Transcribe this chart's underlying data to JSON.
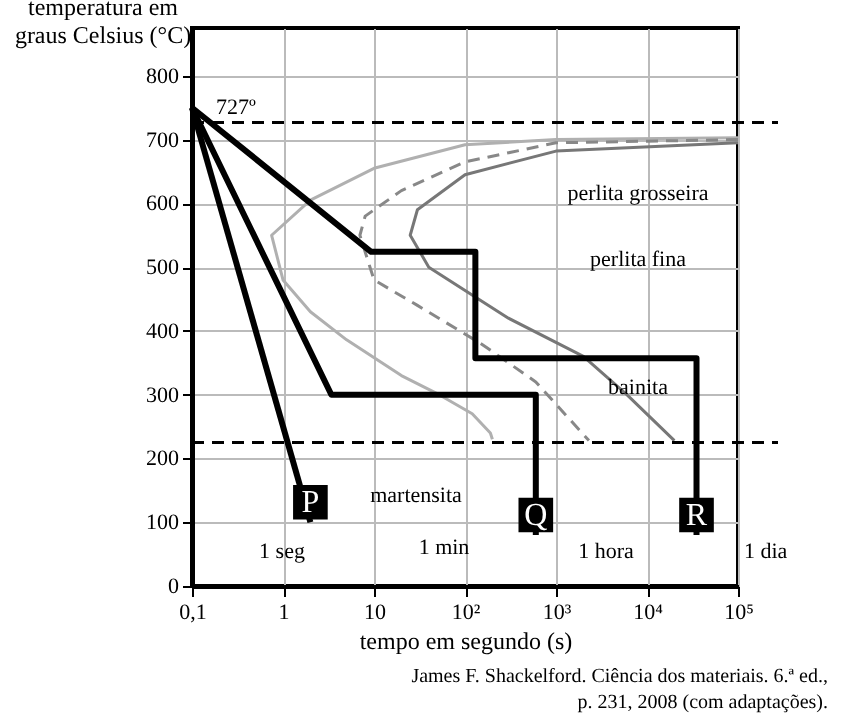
{
  "chart_data": {
    "type": "line",
    "ylabel": "temperatura em graus Celsius (°C)",
    "xlabel": "tempo em segundo (s)",
    "log": "x",
    "xlim": [
      0.1,
      100000
    ],
    "ylim": [
      0,
      875
    ],
    "xticks": [
      {
        "value": 0.1,
        "label": "0,1"
      },
      1,
      10,
      {
        "value": 100,
        "label": "10²"
      },
      {
        "value": 1000,
        "label": "10³"
      },
      {
        "value": 10000,
        "label": "10⁴"
      },
      {
        "value": 100000,
        "label": "10⁵"
      }
    ],
    "yticks": [
      0,
      100,
      200,
      300,
      400,
      500,
      600,
      700,
      800
    ],
    "grid": true,
    "marker": "none",
    "series": [
      {
        "color": "#b0b0b0",
        "line_style": "solid",
        "x": [
          100000,
          1000,
          100,
          10,
          2,
          0.75,
          1,
          2,
          5,
          20,
          52,
          120,
          190,
          200
        ],
        "values": [
          703,
          700,
          692,
          655,
          605,
          550,
          480,
          430,
          386,
          330,
          300,
          270,
          240,
          230
        ]
      },
      {
        "color": "#888888",
        "line_style": "dashed",
        "x": [
          100000,
          1000,
          100,
          20,
          8,
          7,
          10,
          30,
          150,
          600,
          2300
        ],
        "values": [
          700,
          695,
          665,
          620,
          580,
          550,
          480,
          440,
          380,
          320,
          228
        ]
      },
      {
        "color": "#777777",
        "line_style": "solid",
        "x": [
          100000,
          1000,
          100,
          30,
          25,
          40,
          300,
          2000,
          6000,
          20000
        ],
        "values": [
          695,
          682,
          645,
          590,
          550,
          500,
          420,
          360,
          300,
          228
        ]
      },
      {
        "name": "P",
        "color": "#000000",
        "line_style": "solid",
        "x": [
          0.1,
          2
        ],
        "values": [
          750,
          100
        ]
      },
      {
        "name": "Q",
        "color": "#000000",
        "line_style": "solid",
        "x": [
          0.1,
          3.4,
          600,
          600
        ],
        "values": [
          750,
          300,
          300,
          80
        ]
      },
      {
        "name": "R",
        "color": "#000000",
        "line_style": "solid",
        "x": [
          0.1,
          9.3,
          130,
          130,
          35000,
          35000
        ],
        "values": [
          750,
          524,
          524,
          357,
          357,
          80
        ]
      }
    ],
    "ref_lines": [
      {
        "axis": "y",
        "value": 727,
        "label": "727º",
        "color": "#000000",
        "line_style": "dashed"
      },
      {
        "axis": "y",
        "value": 225,
        "color": "#000000",
        "line_style": "dashed"
      }
    ],
    "annotations": [
      "perlita grosseira",
      "perlita fina",
      "bainita",
      "martensita",
      "1 seg",
      "1 min",
      "1 hora",
      "1 dia",
      "James F. Shackelford. Ciência dos materiais. 6.ª ed.,",
      "p. 231, 2008 (com adaptações)."
    ]
  }
}
